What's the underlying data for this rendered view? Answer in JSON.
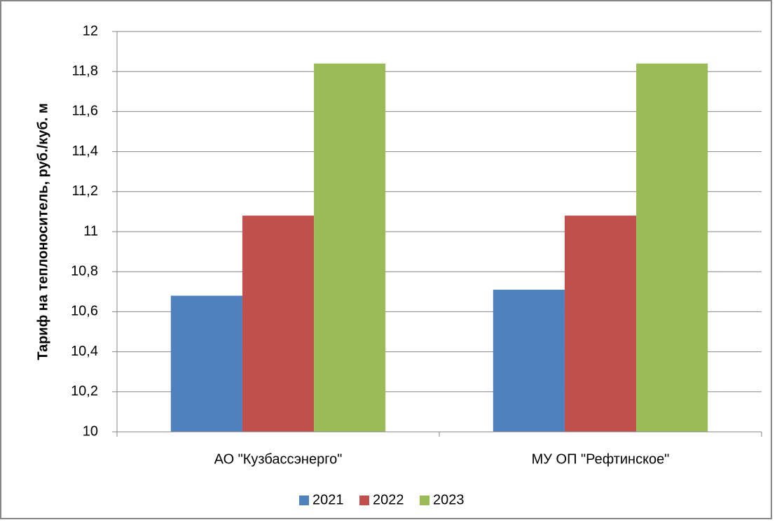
{
  "chart_data": {
    "type": "bar",
    "y_label": "Тариф на теплоноситель, руб./куб. м",
    "categories": [
      "АО \"Кузбассэнерго\"",
      "МУ ОП \"Рефтинское\""
    ],
    "series": [
      {
        "name": "2021",
        "color": "#4f81bd",
        "values": [
          10.68,
          10.71
        ]
      },
      {
        "name": "2022",
        "color": "#c0504d",
        "values": [
          11.08,
          11.08
        ]
      },
      {
        "name": "2023",
        "color": "#9bbb59",
        "values": [
          11.84,
          11.84
        ]
      }
    ],
    "ylim": [
      10,
      12
    ],
    "yticks": [
      10,
      {
        "value": 10.2,
        "label": "10,2"
      },
      {
        "value": 10.4,
        "label": "10,4"
      },
      {
        "value": 10.6,
        "label": "10,6"
      },
      {
        "value": 10.8,
        "label": "10,8"
      },
      11,
      {
        "value": 11.2,
        "label": "11,2"
      },
      {
        "value": 11.4,
        "label": "11,4"
      },
      {
        "value": 11.6,
        "label": "11,6"
      },
      {
        "value": 11.8,
        "label": "11,8"
      },
      12
    ],
    "grid": true,
    "legend": "bottom"
  }
}
